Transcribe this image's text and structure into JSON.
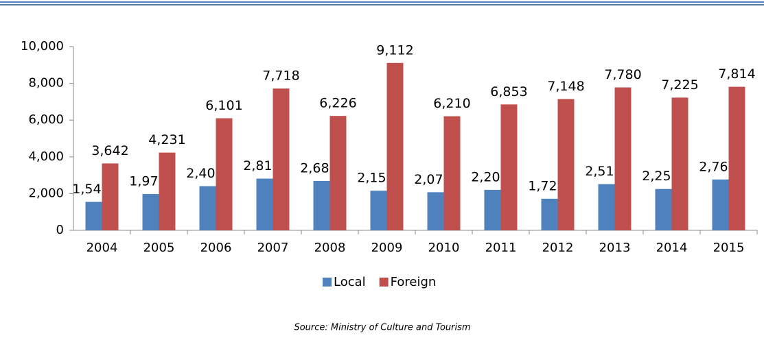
{
  "chart_data": {
    "type": "bar",
    "categories": [
      "2004",
      "2005",
      "2006",
      "2007",
      "2008",
      "2009",
      "2010",
      "2011",
      "2012",
      "2013",
      "2014",
      "2015"
    ],
    "series": [
      {
        "name": "Local",
        "color": "#4f81bd",
        "values": [
          1549,
          1979,
          2404,
          2815,
          2689,
          2155,
          2075,
          2204,
          1720,
          2516,
          2250,
          2768
        ],
        "value_labels": [
          "1,549",
          "1,979",
          "2,404",
          "2,815",
          "2,689",
          "2,155",
          "2,075",
          "2,204",
          "1,720",
          "2,516",
          "2,250",
          "2,768"
        ]
      },
      {
        "name": "Foreign",
        "color": "#c0504d",
        "values": [
          3642,
          4231,
          6101,
          7718,
          6226,
          9112,
          6210,
          6853,
          7148,
          7780,
          7225,
          7814
        ],
        "value_labels": [
          "3,642",
          "4,231",
          "6,101",
          "7,718",
          "6,226",
          "9,112",
          "6,210",
          "6,853",
          "7,148",
          "7,780",
          "7,225",
          "7,814"
        ]
      }
    ],
    "ylim": [
      0,
      10000
    ],
    "yticks": [
      0,
      {
        "value": 2000,
        "label": "2,000"
      },
      {
        "value": 4000,
        "label": "4,000"
      },
      {
        "value": 6000,
        "label": "6,000"
      },
      {
        "value": 8000,
        "label": "8,000"
      },
      {
        "value": 10000,
        "label": "10,000"
      }
    ],
    "legend": "bottom",
    "source": "Source: Ministry of Culture and Tourism"
  }
}
